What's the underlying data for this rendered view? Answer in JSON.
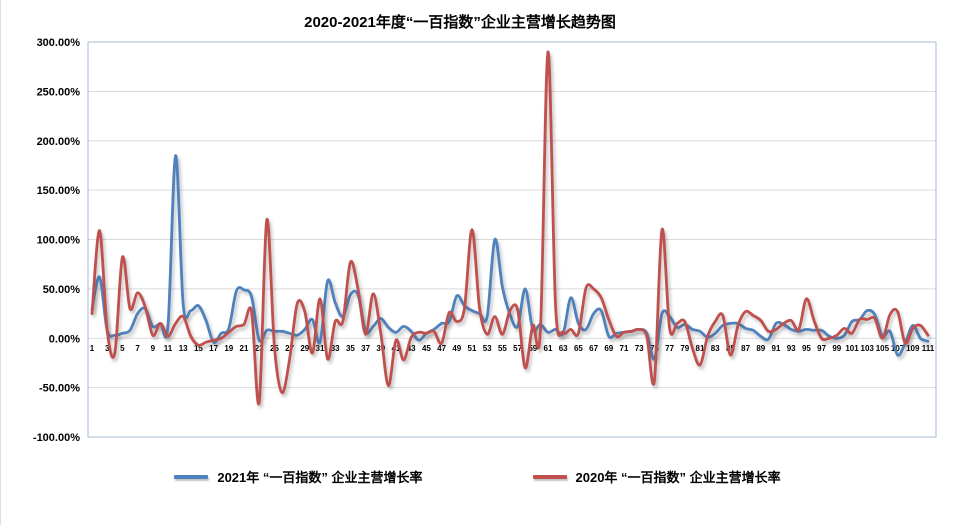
{
  "chart": {
    "title": "2020-2021年度“一百指数”企业主营增长趋势图"
  },
  "colors": {
    "series_2021": "#4F81BD",
    "series_2020": "#C0504D",
    "gridline": "#D9D9D9",
    "plot_border": "#A6B9D4",
    "tick_text": "#000000",
    "background": "#FFFFFF"
  },
  "chart_data": {
    "type": "line",
    "title": "2020-2021年度“一百指数”企业主营增长趋势图",
    "xlabel": "",
    "ylabel": "",
    "unit": "percent",
    "grid": true,
    "smooth_lines": true,
    "legend_position": "bottom",
    "x_range": [
      1,
      111
    ],
    "ylim": [
      -100,
      300
    ],
    "y_tick_step": 50,
    "y_tick_labels": [
      "300.00%",
      "250.00%",
      "200.00%",
      "150.00%",
      "100.00%",
      "50.00%",
      "0.00%",
      "-50.00%",
      "-100.00%"
    ],
    "x_ticks": [
      1,
      3,
      5,
      7,
      9,
      11,
      13,
      15,
      17,
      19,
      21,
      23,
      25,
      27,
      29,
      31,
      33,
      35,
      37,
      39,
      41,
      43,
      45,
      47,
      49,
      51,
      53,
      55,
      57,
      59,
      61,
      63,
      65,
      67,
      69,
      71,
      73,
      75,
      77,
      79,
      81,
      83,
      85,
      87,
      89,
      91,
      93,
      95,
      97,
      99,
      101,
      103,
      105,
      107,
      109,
      111
    ],
    "series": [
      {
        "name": "2021年 “一百指数” 企业主营增长率",
        "color": "#4F81BD",
        "values": [
          29,
          62,
          8,
          3,
          5,
          8,
          25,
          30,
          12,
          15,
          13,
          185,
          34,
          28,
          33,
          18,
          -4,
          5,
          10,
          48,
          49,
          42,
          -2,
          8,
          7,
          7,
          5,
          3,
          9,
          19,
          -4,
          58,
          36,
          22,
          44,
          44,
          7,
          12,
          20,
          11,
          6,
          12,
          7,
          -2,
          5,
          9,
          15,
          17,
          43,
          33,
          28,
          25,
          22,
          100,
          52,
          24,
          12,
          50,
          9,
          14,
          6,
          9,
          5,
          41,
          15,
          9,
          25,
          28,
          2,
          5,
          6,
          7,
          9,
          5,
          -21,
          25,
          22,
          11,
          14,
          9,
          7,
          1,
          5,
          13,
          15,
          15,
          10,
          8,
          2,
          -1,
          15,
          14,
          9,
          7,
          9,
          8,
          8,
          2,
          0,
          3,
          17,
          19,
          28,
          24,
          2,
          7,
          -17,
          -5,
          13,
          0,
          -3
        ]
      },
      {
        "name": "2020年 “一百指数” 企业主营增长率",
        "color": "#C0504D",
        "values": [
          25,
          109,
          8,
          -15,
          82,
          30,
          46,
          32,
          3,
          15,
          2,
          15,
          22,
          2,
          -7,
          -4,
          -2,
          0,
          6,
          12,
          14,
          27,
          -65,
          120,
          -8,
          -55,
          -21,
          35,
          27,
          -15,
          40,
          -21,
          17,
          17,
          77,
          50,
          4,
          45,
          5,
          -48,
          -2,
          -22,
          1,
          6,
          5,
          7,
          -5,
          26,
          17,
          30,
          110,
          30,
          4,
          22,
          4,
          28,
          29,
          -30,
          13,
          8,
          290,
          32,
          6,
          9,
          5,
          51,
          50,
          41,
          19,
          2,
          6,
          7,
          9,
          2,
          -43,
          110,
          10,
          15,
          17,
          -10,
          -27,
          2,
          17,
          23,
          -17,
          13,
          27,
          23,
          18,
          7,
          9,
          15,
          18,
          9,
          40,
          18,
          0,
          0,
          3,
          10,
          5,
          19,
          19,
          20,
          0,
          24,
          27,
          -5,
          10,
          13,
          3
        ]
      }
    ]
  }
}
